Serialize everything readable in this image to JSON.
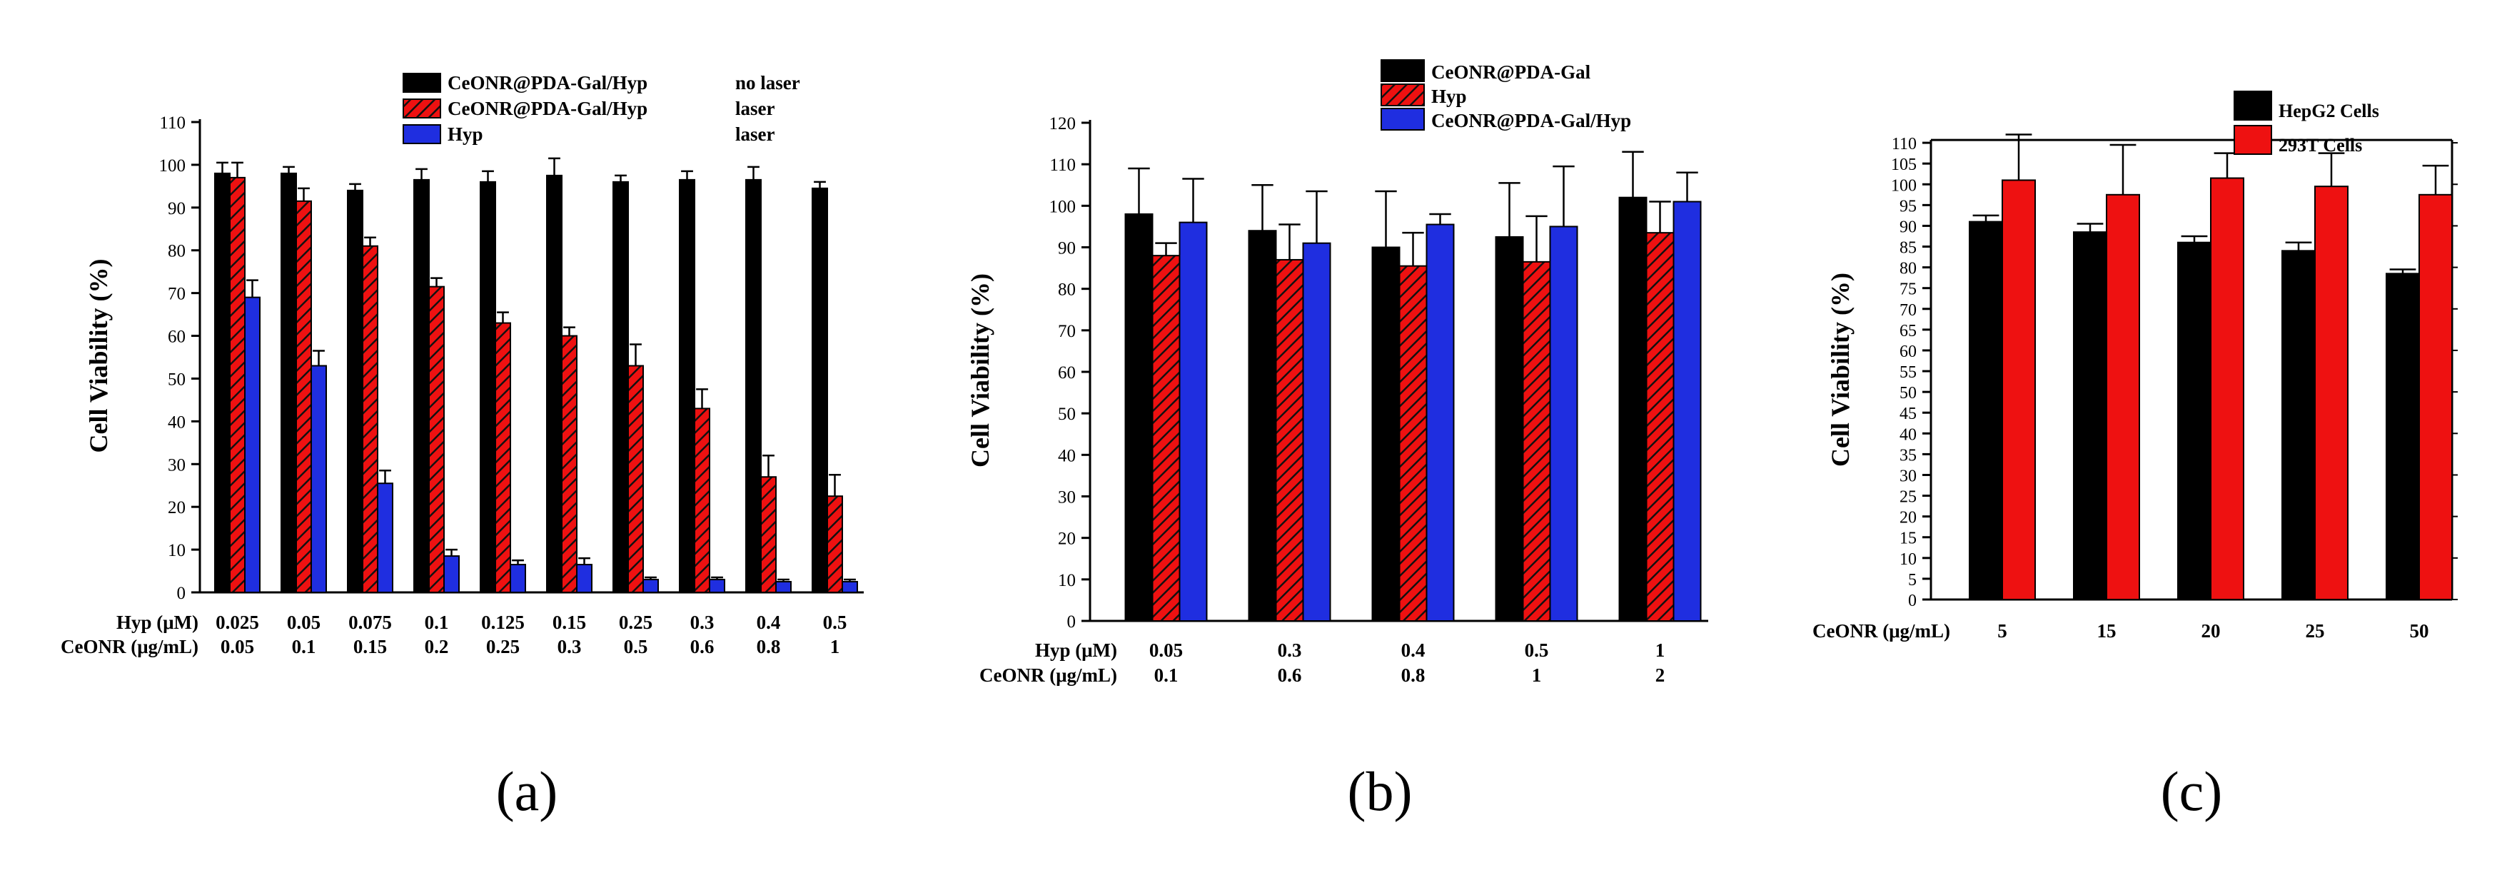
{
  "colors": {
    "black": "#000000",
    "red": "#ee1111",
    "blue": "#1f2ee0",
    "hatch": "#000000"
  },
  "chart_data": [
    {
      "panel_label": "(a)",
      "type": "bar",
      "ylabel": "Cell Viability (%)",
      "ylim": [
        0,
        110
      ],
      "yticks": [
        0,
        10,
        20,
        30,
        40,
        50,
        60,
        70,
        80,
        90,
        100,
        110
      ],
      "row_labels": [
        "Hyp (μM)",
        "CeONR (μg/mL)"
      ],
      "rows": [
        [
          "0.025",
          "0.05",
          "0.075",
          "0.1",
          "0.125",
          "0.15",
          "0.25",
          "0.3",
          "0.4",
          "0.5"
        ],
        [
          "0.05",
          "0.1",
          "0.15",
          "0.2",
          "0.25",
          "0.3",
          "0.5",
          "0.6",
          "0.8",
          "1"
        ]
      ],
      "legend": [
        {
          "label": "CeONR@PDA-Gal/Hyp",
          "note": "no laser"
        },
        {
          "label": "CeONR@PDA-Gal/Hyp",
          "note": "laser"
        },
        {
          "label": "Hyp",
          "note": "laser"
        }
      ],
      "series": [
        {
          "name": "CeONR@PDA-Gal/Hyp no laser",
          "style": "black",
          "values": [
            98,
            98,
            94,
            96.5,
            96,
            97.5,
            96,
            96.5,
            96.5,
            94.5
          ],
          "errors": [
            2.5,
            1.5,
            1.5,
            2.5,
            2.5,
            4,
            1.5,
            2,
            3,
            1.5
          ]
        },
        {
          "name": "CeONR@PDA-Gal/Hyp laser",
          "style": "red-hatch",
          "values": [
            97,
            91.5,
            81,
            71.5,
            63,
            60,
            53,
            43,
            27,
            22.5
          ],
          "errors": [
            3.5,
            3,
            2,
            2,
            2.5,
            2,
            5,
            4.5,
            5,
            5
          ]
        },
        {
          "name": "Hyp laser",
          "style": "blue",
          "values": [
            69,
            53,
            25.5,
            8.5,
            6.5,
            6.5,
            3,
            3,
            2.5,
            2.5
          ],
          "errors": [
            4,
            3.5,
            3,
            1.5,
            1,
            1.5,
            0.5,
            0.5,
            0.5,
            0.5
          ]
        }
      ]
    },
    {
      "panel_label": "(b)",
      "type": "bar",
      "ylabel": "Cell Viability (%)",
      "ylim": [
        0,
        120
      ],
      "yticks": [
        0,
        10,
        20,
        30,
        40,
        50,
        60,
        70,
        80,
        90,
        100,
        110,
        120
      ],
      "row_labels": [
        "Hyp (μM)",
        "CeONR (μg/mL)"
      ],
      "rows": [
        [
          "0.05",
          "0.3",
          "0.4",
          "0.5",
          "1"
        ],
        [
          "0.1",
          "0.6",
          "0.8",
          "1",
          "2"
        ]
      ],
      "legend": [
        {
          "label": "CeONR@PDA-Gal",
          "note": ""
        },
        {
          "label": "Hyp",
          "note": ""
        },
        {
          "label": "CeONR@PDA-Gal/Hyp",
          "note": ""
        }
      ],
      "series": [
        {
          "name": "CeONR@PDA-Gal",
          "style": "black",
          "values": [
            98,
            94,
            90,
            92.5,
            102
          ],
          "errors": [
            11,
            11,
            13.5,
            13,
            11
          ]
        },
        {
          "name": "Hyp",
          "style": "red-hatch",
          "values": [
            88,
            87,
            85.5,
            86.5,
            93.5
          ],
          "errors": [
            3,
            8.5,
            8,
            11,
            7.5
          ]
        },
        {
          "name": "CeONR@PDA-Gal/Hyp",
          "style": "blue",
          "values": [
            96,
            91,
            95.5,
            95,
            101
          ],
          "errors": [
            10.5,
            12.5,
            2.5,
            14.5,
            7
          ]
        }
      ]
    },
    {
      "panel_label": "(c)",
      "type": "bar",
      "ylabel": "Cell Viability (%)",
      "ylim": [
        0,
        115
      ],
      "yticks": [
        0,
        5,
        10,
        15,
        20,
        25,
        30,
        35,
        40,
        45,
        50,
        55,
        60,
        65,
        70,
        75,
        80,
        85,
        90,
        95,
        100,
        105,
        110
      ],
      "row_labels": [
        "CeONR (μg/mL)"
      ],
      "rows": [
        [
          "5",
          "15",
          "20",
          "25",
          "50"
        ]
      ],
      "legend": [
        {
          "label": "HepG2 Cells",
          "note": ""
        },
        {
          "label": "293T Cells",
          "note": ""
        }
      ],
      "series": [
        {
          "name": "HepG2 Cells",
          "style": "black",
          "values": [
            91,
            88.5,
            86,
            84,
            78.5
          ],
          "errors": [
            1.5,
            2,
            1.5,
            2,
            1
          ]
        },
        {
          "name": "293T Cells",
          "style": "red",
          "values": [
            101,
            97.5,
            101.5,
            99.5,
            97.5
          ],
          "errors": [
            11,
            12,
            6,
            8,
            7
          ]
        }
      ]
    }
  ]
}
